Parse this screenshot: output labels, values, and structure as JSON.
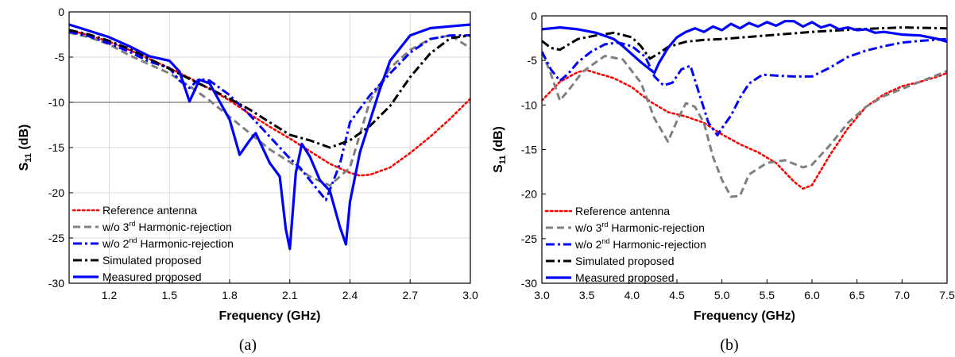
{
  "chart_data": [
    {
      "type": "line",
      "panel_label": "(a)",
      "xlabel": "Frequency (GHz)",
      "ylabel": {
        "main": "S",
        "sub": "11",
        "rest": " (dB)"
      },
      "xlim": [
        1.0,
        3.0
      ],
      "ylim": [
        -30,
        0
      ],
      "xticks": [
        1.2,
        1.5,
        1.8,
        2.1,
        2.4,
        2.7,
        3.0
      ],
      "xtick_labels": [
        "1.2",
        "1.5",
        "1.8",
        "2.1",
        "2.4",
        "2.7",
        "3.0"
      ],
      "yticks": [
        0,
        -5,
        -10,
        -15,
        -20,
        -25,
        -30
      ],
      "ytick_labels": [
        "0",
        "-5",
        "-10",
        "-15",
        "-20",
        "-25",
        "-30"
      ],
      "grid": true,
      "reference_line": -10,
      "legend_position": "bottom-left",
      "series": [
        {
          "name": "Reference antenna",
          "color": "#ff0000",
          "style": "dot",
          "x": [
            1.0,
            1.1,
            1.2,
            1.3,
            1.4,
            1.5,
            1.6,
            1.7,
            1.8,
            1.9,
            2.0,
            2.1,
            2.2,
            2.3,
            2.4,
            2.45,
            2.5,
            2.6,
            2.7,
            2.8,
            2.9,
            3.0
          ],
          "y": [
            -2,
            -2.6,
            -3.3,
            -4.2,
            -5.2,
            -6.2,
            -7.3,
            -8.5,
            -9.8,
            -11.3,
            -12.7,
            -14,
            -15.4,
            -16.8,
            -17.8,
            -18.1,
            -18.0,
            -17.2,
            -15.6,
            -13.8,
            -11.8,
            -9.6
          ]
        },
        {
          "name": "w/o 3rd Harmonic-rejection",
          "name_parts": [
            "w/o 3",
            "rd",
            " Harmonic-rejection"
          ],
          "color": "#808080",
          "style": "dash",
          "x": [
            1.0,
            1.1,
            1.2,
            1.3,
            1.4,
            1.5,
            1.6,
            1.7,
            1.8,
            1.9,
            2.0,
            2.1,
            2.2,
            2.3,
            2.4,
            2.5,
            2.6,
            2.7,
            2.8,
            2.9,
            3.0
          ],
          "y": [
            -2.3,
            -2.8,
            -3.6,
            -4.8,
            -5.8,
            -6.8,
            -8.2,
            -9.8,
            -11.6,
            -13.4,
            -15.2,
            -16.6,
            -18.2,
            -19.2,
            -17.2,
            -9.8,
            -6.2,
            -4.2,
            -3.0,
            -2.6,
            -4.0
          ]
        },
        {
          "name": "w/o 2nd Harmonic-rejection",
          "name_parts": [
            "w/o 2",
            "nd",
            " Harmonic-rejection"
          ],
          "color": "#0000ff",
          "style": "dashdot",
          "x": [
            1.0,
            1.1,
            1.2,
            1.3,
            1.4,
            1.5,
            1.55,
            1.6,
            1.65,
            1.7,
            1.8,
            1.9,
            2.0,
            2.1,
            2.15,
            2.2,
            2.28,
            2.35,
            2.4,
            2.5,
            2.6,
            2.7,
            2.8,
            2.9,
            3.0
          ],
          "y": [
            -2.2,
            -2.7,
            -3.5,
            -4.4,
            -5.5,
            -6.2,
            -7.6,
            -8.4,
            -7.4,
            -7.6,
            -9.2,
            -11.4,
            -13.8,
            -16.2,
            -17.2,
            -18.6,
            -20.8,
            -16.8,
            -12.2,
            -9.2,
            -6.8,
            -4.5,
            -3.0,
            -2.6,
            -2.6
          ]
        },
        {
          "name": "Simulated proposed",
          "color": "#000000",
          "style": "dashdot",
          "x": [
            1.0,
            1.1,
            1.2,
            1.3,
            1.4,
            1.5,
            1.6,
            1.7,
            1.8,
            1.9,
            2.0,
            2.1,
            2.2,
            2.3,
            2.4,
            2.5,
            2.6,
            2.7,
            2.8,
            2.9,
            3.0
          ],
          "y": [
            -2,
            -2.5,
            -3.2,
            -4.1,
            -5.2,
            -6.3,
            -7.4,
            -8.5,
            -9.6,
            -10.8,
            -12.2,
            -13.6,
            -14.2,
            -15.0,
            -14.2,
            -12.6,
            -10.4,
            -7.2,
            -4.6,
            -2.9,
            -2.6
          ]
        },
        {
          "name": "Measured proposed",
          "color": "#0000ff",
          "style": "solid",
          "x": [
            1.0,
            1.1,
            1.2,
            1.3,
            1.4,
            1.5,
            1.55,
            1.6,
            1.65,
            1.7,
            1.8,
            1.85,
            1.9,
            1.93,
            2.0,
            2.05,
            2.08,
            2.1,
            2.13,
            2.16,
            2.2,
            2.25,
            2.3,
            2.35,
            2.38,
            2.4,
            2.45,
            2.5,
            2.55,
            2.6,
            2.7,
            2.8,
            2.9,
            3.0
          ],
          "y": [
            -1.4,
            -2.1,
            -2.8,
            -3.8,
            -4.9,
            -5.4,
            -6.6,
            -9.9,
            -7.5,
            -7.9,
            -11.9,
            -15.8,
            -14.2,
            -13.4,
            -16.7,
            -18.2,
            -24.0,
            -26.2,
            -17.8,
            -14.6,
            -16.0,
            -18.6,
            -19.8,
            -23.8,
            -25.7,
            -21.0,
            -15.5,
            -12.0,
            -8.5,
            -5.4,
            -2.6,
            -1.8,
            -1.6,
            -1.4
          ]
        }
      ]
    },
    {
      "type": "line",
      "panel_label": "(b)",
      "xlabel": "Frequency (GHz)",
      "ylabel": {
        "main": "S",
        "sub": "11",
        "rest": " (dB)"
      },
      "xlim": [
        3.0,
        7.5
      ],
      "ylim": [
        -30,
        0
      ],
      "xticks": [
        3.0,
        3.5,
        4.0,
        4.5,
        5.0,
        5.5,
        6.0,
        6.5,
        7.0,
        7.5
      ],
      "xtick_labels": [
        "3.0",
        "3.5",
        "4.0",
        "4.5",
        "5.0",
        "5.5",
        "6.0",
        "6.5",
        "7.0",
        "7.5"
      ],
      "yticks": [
        0,
        -5,
        -10,
        -15,
        -20,
        -25,
        -30
      ],
      "ytick_labels": [
        "0",
        "-5",
        "-10",
        "-15",
        "-20",
        "-25",
        "-30"
      ],
      "grid": false,
      "legend_position": "bottom-left",
      "series": [
        {
          "name": "Reference antenna",
          "color": "#ff0000",
          "style": "dot",
          "x": [
            3.0,
            3.2,
            3.4,
            3.5,
            3.6,
            3.8,
            4.0,
            4.2,
            4.4,
            4.6,
            4.8,
            5.0,
            5.2,
            5.4,
            5.6,
            5.8,
            5.9,
            6.0,
            6.2,
            6.4,
            6.6,
            6.8,
            7.0,
            7.2,
            7.4,
            7.5
          ],
          "y": [
            -9.5,
            -7.4,
            -6.3,
            -6.1,
            -6.4,
            -7.0,
            -8.0,
            -9.6,
            -10.8,
            -11.3,
            -12.0,
            -13.3,
            -14.4,
            -15.3,
            -16.5,
            -18.6,
            -19.4,
            -19.0,
            -15.6,
            -12.6,
            -10.2,
            -8.8,
            -7.9,
            -7.4,
            -6.8,
            -6.4
          ]
        },
        {
          "name": "w/o 3rd Harmonic-rejection",
          "name_parts": [
            "w/o 3",
            "rd",
            " Harmonic-rejection"
          ],
          "color": "#808080",
          "style": "dash",
          "x": [
            3.0,
            3.1,
            3.2,
            3.3,
            3.45,
            3.6,
            3.7,
            3.9,
            4.1,
            4.25,
            4.4,
            4.5,
            4.6,
            4.7,
            4.8,
            4.9,
            5.0,
            5.1,
            5.2,
            5.3,
            5.5,
            5.7,
            5.9,
            6.0,
            6.2,
            6.4,
            6.6,
            6.8,
            7.0,
            7.2,
            7.5
          ],
          "y": [
            -4.0,
            -6.5,
            -9.5,
            -8.3,
            -6.3,
            -5.2,
            -4.5,
            -4.9,
            -7.5,
            -11.5,
            -14.1,
            -11.8,
            -9.8,
            -10.2,
            -12.0,
            -15.8,
            -18.4,
            -20.3,
            -20.2,
            -17.8,
            -16.5,
            -16.2,
            -17.0,
            -16.7,
            -14.5,
            -12.0,
            -10.2,
            -9.0,
            -8.2,
            -7.4,
            -6.2
          ]
        },
        {
          "name": "w/o 2nd Harmonic-rejection",
          "name_parts": [
            "w/o 2",
            "nd",
            " Harmonic-rejection"
          ],
          "color": "#0000ff",
          "style": "dashdot",
          "x": [
            3.0,
            3.1,
            3.2,
            3.3,
            3.4,
            3.55,
            3.7,
            3.85,
            4.0,
            4.15,
            4.25,
            4.35,
            4.45,
            4.55,
            4.65,
            4.75,
            4.85,
            4.95,
            5.0,
            5.1,
            5.2,
            5.3,
            5.45,
            5.6,
            5.8,
            6.0,
            6.2,
            6.4,
            6.6,
            6.8,
            7.0,
            7.2,
            7.5
          ],
          "y": [
            -4.0,
            -6.0,
            -7.3,
            -6.4,
            -5.2,
            -4.0,
            -3.2,
            -3.0,
            -3.4,
            -4.6,
            -6.8,
            -7.8,
            -7.5,
            -6.0,
            -5.6,
            -8.8,
            -12.0,
            -13.4,
            -12.6,
            -11.2,
            -9.2,
            -7.6,
            -6.6,
            -6.7,
            -6.8,
            -6.8,
            -5.8,
            -4.6,
            -3.9,
            -3.4,
            -3.0,
            -2.8,
            -2.6
          ]
        },
        {
          "name": "Simulated proposed",
          "color": "#000000",
          "style": "dashdot",
          "x": [
            3.0,
            3.1,
            3.2,
            3.3,
            3.4,
            3.6,
            3.8,
            4.0,
            4.1,
            4.2,
            4.3,
            4.4,
            4.6,
            4.8,
            5.0,
            5.5,
            6.0,
            6.5,
            7.0,
            7.5
          ],
          "y": [
            -2.8,
            -3.6,
            -3.8,
            -3.2,
            -2.6,
            -2.2,
            -1.9,
            -2.4,
            -3.4,
            -4.8,
            -4.2,
            -3.5,
            -2.9,
            -2.7,
            -2.6,
            -2.2,
            -1.8,
            -1.5,
            -1.3,
            -1.4
          ]
        },
        {
          "name": "Measured proposed",
          "color": "#0000ff",
          "style": "solid",
          "x": [
            3.0,
            3.2,
            3.4,
            3.6,
            3.8,
            3.9,
            4.0,
            4.1,
            4.2,
            4.25,
            4.3,
            4.4,
            4.5,
            4.6,
            4.7,
            4.8,
            4.9,
            5.0,
            5.1,
            5.2,
            5.3,
            5.4,
            5.5,
            5.6,
            5.7,
            5.8,
            5.9,
            6.0,
            6.1,
            6.2,
            6.3,
            6.4,
            6.5,
            6.6,
            6.7,
            6.8,
            7.0,
            7.2,
            7.4,
            7.5
          ],
          "y": [
            -1.5,
            -1.3,
            -1.5,
            -1.9,
            -2.6,
            -3.4,
            -4.3,
            -5.2,
            -6.0,
            -6.4,
            -5.3,
            -3.6,
            -2.4,
            -1.8,
            -1.4,
            -1.8,
            -1.2,
            -1.6,
            -0.9,
            -1.4,
            -0.8,
            -1.2,
            -0.7,
            -1.1,
            -0.6,
            -0.6,
            -1.2,
            -0.7,
            -1.3,
            -1.0,
            -1.5,
            -1.3,
            -1.6,
            -1.5,
            -1.9,
            -1.8,
            -2.1,
            -2.2,
            -2.6,
            -2.9
          ]
        }
      ]
    }
  ]
}
